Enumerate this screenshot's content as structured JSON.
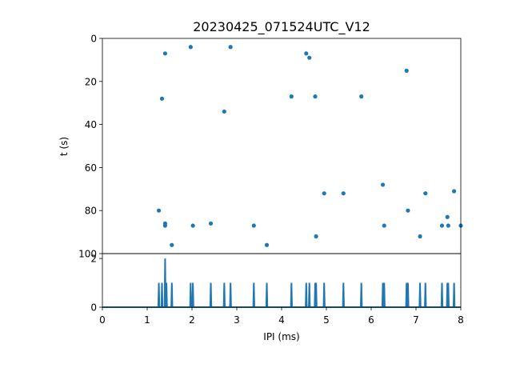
{
  "chart_data": [
    {
      "type": "scatter",
      "title": "20230425_071524UTC_V12",
      "xlabel": "",
      "ylabel": "t (s)",
      "xlim": [
        0,
        8
      ],
      "ylim": [
        100,
        0
      ],
      "y_inverted": true,
      "grid": false,
      "color": "#1f77b4",
      "y_ticks": [
        0,
        20,
        40,
        60,
        80,
        100
      ],
      "x": [
        1.26,
        1.33,
        1.4,
        1.4,
        1.4,
        1.55,
        1.97,
        2.02,
        2.42,
        2.72,
        2.86,
        3.38,
        3.67,
        4.22,
        4.55,
        4.62,
        4.75,
        4.77,
        4.95,
        5.38,
        5.78,
        6.26,
        6.29,
        6.79,
        6.82,
        7.09,
        7.21,
        7.58,
        7.7,
        7.72,
        7.85,
        8.0
      ],
      "y": [
        80,
        28,
        7,
        86,
        87,
        96,
        4,
        87,
        86,
        34,
        4,
        87,
        96,
        27,
        7,
        9,
        27,
        92,
        72,
        72,
        27,
        68,
        87,
        15,
        80,
        92,
        72,
        87,
        83,
        87,
        71,
        87
      ]
    },
    {
      "type": "line",
      "title": "",
      "xlabel": "IPI (ms)",
      "ylabel": "",
      "xlim": [
        0,
        8
      ],
      "ylim": [
        0,
        2.2
      ],
      "grid": false,
      "color": "#1f77b4",
      "x_ticks": [
        0,
        1,
        2,
        3,
        4,
        5,
        6,
        7,
        8
      ],
      "y_ticks": [
        0,
        2
      ],
      "spikes": [
        {
          "x": 1.26,
          "count": 1
        },
        {
          "x": 1.33,
          "count": 1
        },
        {
          "x": 1.4,
          "count": 2
        },
        {
          "x": 1.43,
          "count": 1
        },
        {
          "x": 1.55,
          "count": 1
        },
        {
          "x": 1.97,
          "count": 1
        },
        {
          "x": 2.02,
          "count": 1
        },
        {
          "x": 2.42,
          "count": 1
        },
        {
          "x": 2.72,
          "count": 1
        },
        {
          "x": 2.86,
          "count": 1
        },
        {
          "x": 3.38,
          "count": 1
        },
        {
          "x": 3.67,
          "count": 1
        },
        {
          "x": 4.22,
          "count": 1
        },
        {
          "x": 4.55,
          "count": 1
        },
        {
          "x": 4.62,
          "count": 1
        },
        {
          "x": 4.75,
          "count": 1
        },
        {
          "x": 4.77,
          "count": 1
        },
        {
          "x": 4.95,
          "count": 1
        },
        {
          "x": 5.38,
          "count": 1
        },
        {
          "x": 5.78,
          "count": 1
        },
        {
          "x": 6.26,
          "count": 1
        },
        {
          "x": 6.29,
          "count": 1
        },
        {
          "x": 6.79,
          "count": 1
        },
        {
          "x": 6.82,
          "count": 1
        },
        {
          "x": 7.09,
          "count": 1
        },
        {
          "x": 7.21,
          "count": 1
        },
        {
          "x": 7.58,
          "count": 1
        },
        {
          "x": 7.7,
          "count": 1
        },
        {
          "x": 7.72,
          "count": 1
        },
        {
          "x": 7.85,
          "count": 1
        }
      ]
    }
  ]
}
